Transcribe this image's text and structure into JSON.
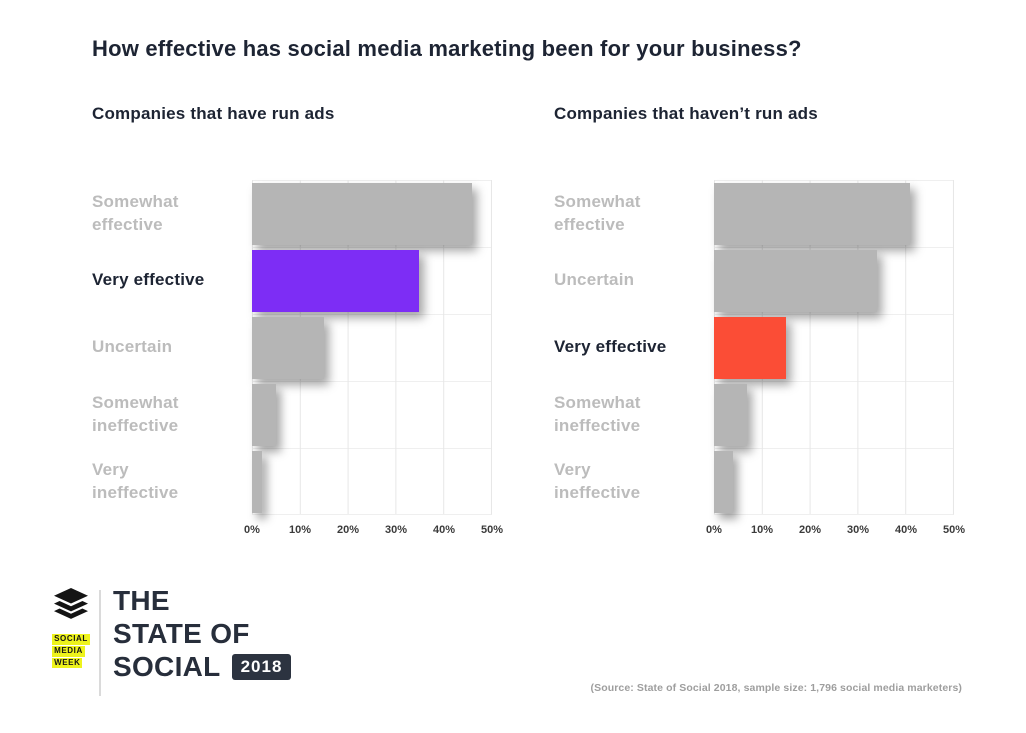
{
  "page": {
    "title": "How effective has social media marketing been for your business?",
    "source_note": "(Source: State of Social 2018, sample size: 1,796 social media marketers)"
  },
  "branding": {
    "logo_icon": "buffer-layers-icon",
    "org_name_lines": [
      "SOCIAL",
      "MEDIA",
      "WEEK"
    ],
    "org_highlight_color": "#eef31c",
    "report_title_lines": [
      "THE",
      "STATE OF",
      "SOCIAL"
    ],
    "year_badge": "2018",
    "year_badge_color": "#2c3340",
    "text_color": "#272e3b"
  },
  "chart_data": [
    {
      "type": "bar",
      "orientation": "horizontal",
      "title": "Companies that have run ads",
      "categories": [
        "Somewhat effective",
        "Very effective",
        "Uncertain",
        "Somewhat ineffective",
        "Very ineffective"
      ],
      "label_lines": [
        [
          "Somewhat",
          "effective"
        ],
        [
          "Very effective"
        ],
        [
          "Uncertain"
        ],
        [
          "Somewhat",
          "ineffective"
        ],
        [
          "Very",
          "ineffective"
        ]
      ],
      "values": [
        46,
        35,
        15,
        5,
        2
      ],
      "unit": "%",
      "xlim": [
        0,
        50
      ],
      "x_ticks": [
        "0%",
        "10%",
        "20%",
        "30%",
        "40%",
        "50%"
      ],
      "grid": true,
      "legend": false,
      "highlight_index": 1,
      "highlight_color": "#7d2df5",
      "bar_color": "#b5b5b5",
      "label_color": "#bcbcbc",
      "highlight_label_color": "#1d2433"
    },
    {
      "type": "bar",
      "orientation": "horizontal",
      "title": "Companies that haven’t run ads",
      "categories": [
        "Somewhat effective",
        "Uncertain",
        "Very effective",
        "Somewhat ineffective",
        "Very ineffective"
      ],
      "label_lines": [
        [
          "Somewhat",
          "effective"
        ],
        [
          "Uncertain"
        ],
        [
          "Very effective"
        ],
        [
          "Somewhat",
          "ineffective"
        ],
        [
          "Very",
          "ineffective"
        ]
      ],
      "values": [
        41,
        34,
        15,
        7,
        4
      ],
      "unit": "%",
      "xlim": [
        0,
        50
      ],
      "x_ticks": [
        "0%",
        "10%",
        "20%",
        "30%",
        "40%",
        "50%"
      ],
      "grid": true,
      "legend": false,
      "highlight_index": 2,
      "highlight_color": "#fb4d36",
      "bar_color": "#b5b5b5",
      "label_color": "#bcbcbc",
      "highlight_label_color": "#1d2433"
    }
  ]
}
